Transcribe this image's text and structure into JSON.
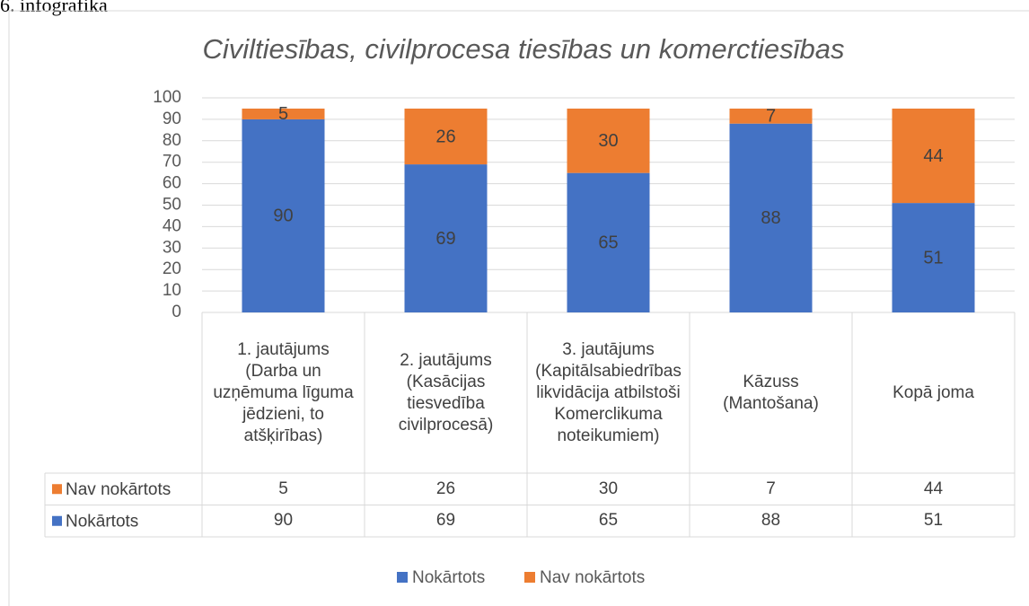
{
  "caption": "6. infografika",
  "chart_data": {
    "type": "stacked_bar",
    "title": "Civiltiesības, civilprocesa tiesības un komerctiesības",
    "categories": [
      "1. jautājums (Darba un uzņēmuma līguma jēdzieni, to atšķirības)",
      "2. jautājums (Kasācijas tiesvedība civilprocesā)",
      "3. jautājums (Kapitālsabiedrības likvidācija atbilstoši Komerclikuma noteikumiem)",
      "Kāzuss (Mantošana)",
      "Kopā joma"
    ],
    "series": [
      {
        "name": "Nokārtots",
        "color": "#4472c4",
        "values": [
          90,
          69,
          65,
          88,
          51
        ]
      },
      {
        "name": "Nav nokārtots",
        "color": "#ed7d31",
        "values": [
          5,
          26,
          30,
          7,
          44
        ]
      }
    ],
    "ylim": [
      0,
      100
    ],
    "yticks": [
      0,
      10,
      20,
      30,
      40,
      50,
      60,
      70,
      80,
      90,
      100
    ],
    "grid": true,
    "legend": "bottom"
  }
}
